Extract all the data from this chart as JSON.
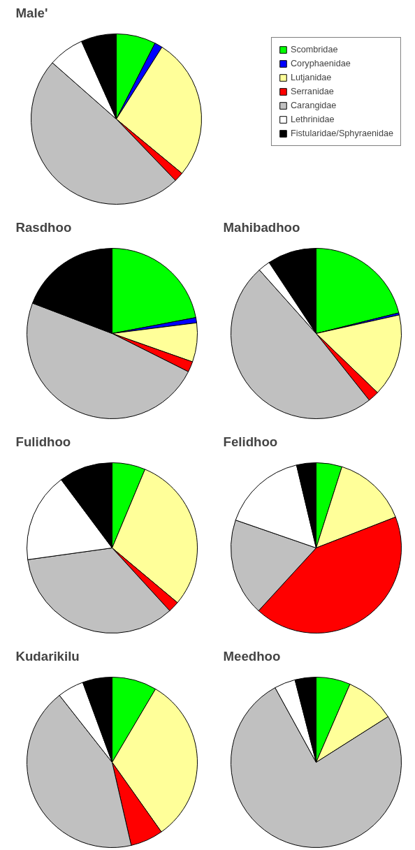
{
  "chart_data": [
    {
      "type": "pie",
      "title": "Male'",
      "legend": "top right",
      "categories": [
        "Scombridae",
        "Coryphaenidae",
        "Lutjanidae",
        "Serranidae",
        "Carangidae",
        "Lethrinidae",
        "Fistularidae/Sphyraenidae"
      ],
      "values": [
        7.5,
        1.5,
        27,
        1.8,
        48.7,
        6.8,
        6.7
      ],
      "colors": [
        "#00ff00",
        "#0000ff",
        "#ffff99",
        "#ff0000",
        "#c0c0c0",
        "#ffffff",
        "#000000"
      ]
    },
    {
      "type": "pie",
      "title": "Rasdhoo",
      "categories": [
        null,
        null,
        null,
        null,
        null,
        null,
        null
      ],
      "values": [
        22,
        1,
        7.4,
        2,
        48.4,
        0,
        19.2
      ],
      "colors": [
        "#00ff00",
        "#0000ff",
        "#ffff99",
        "#ff0000",
        "#c0c0c0",
        "#ffffff",
        "#000000"
      ]
    },
    {
      "type": "pie",
      "title": "Mahibadhoo",
      "categories": [
        null,
        null,
        null,
        null,
        null,
        null,
        null
      ],
      "values": [
        21.1,
        0.4,
        15.7,
        2.1,
        49.1,
        2.3,
        9.3
      ],
      "colors": [
        "#00ff00",
        "#0000ff",
        "#ffff99",
        "#ff0000",
        "#c0c0c0",
        "#ffffff",
        "#000000"
      ]
    },
    {
      "type": "pie",
      "title": "Fulidhoo",
      "categories": [
        null,
        null,
        null,
        null,
        null,
        null,
        null
      ],
      "values": [
        6.3,
        0,
        29.8,
        2.1,
        34.6,
        17,
        10.2
      ],
      "colors": [
        "#00ff00",
        "#0000ff",
        "#ffff99",
        "#ff0000",
        "#c0c0c0",
        "#ffffff",
        "#000000"
      ]
    },
    {
      "type": "pie",
      "title": "Felidhoo",
      "categories": [
        null,
        null,
        null,
        null,
        null,
        null,
        null
      ],
      "values": [
        4.9,
        0,
        14.2,
        42.7,
        18.5,
        16,
        3.7
      ],
      "colors": [
        "#00ff00",
        "#0000ff",
        "#ffff99",
        "#ff0000",
        "#c0c0c0",
        "#ffffff",
        "#000000"
      ]
    },
    {
      "type": "pie",
      "title": "Kudarikilu",
      "categories": [
        null,
        null,
        null,
        null,
        null,
        null,
        null
      ],
      "values": [
        8.5,
        0,
        31.7,
        6.2,
        43,
        5,
        5.6
      ],
      "colors": [
        "#00ff00",
        "#0000ff",
        "#ffff99",
        "#ff0000",
        "#c0c0c0",
        "#ffffff",
        "#000000"
      ]
    },
    {
      "type": "pie",
      "title": "Meedhoo",
      "categories": [
        null,
        null,
        null,
        null,
        null,
        null,
        null
      ],
      "values": [
        6.5,
        0,
        9.5,
        0,
        76,
        4,
        4
      ],
      "colors": [
        "#00ff00",
        "#0000ff",
        "#ffff99",
        "#ff0000",
        "#c0c0c0",
        "#ffffff",
        "#000000"
      ]
    }
  ]
}
